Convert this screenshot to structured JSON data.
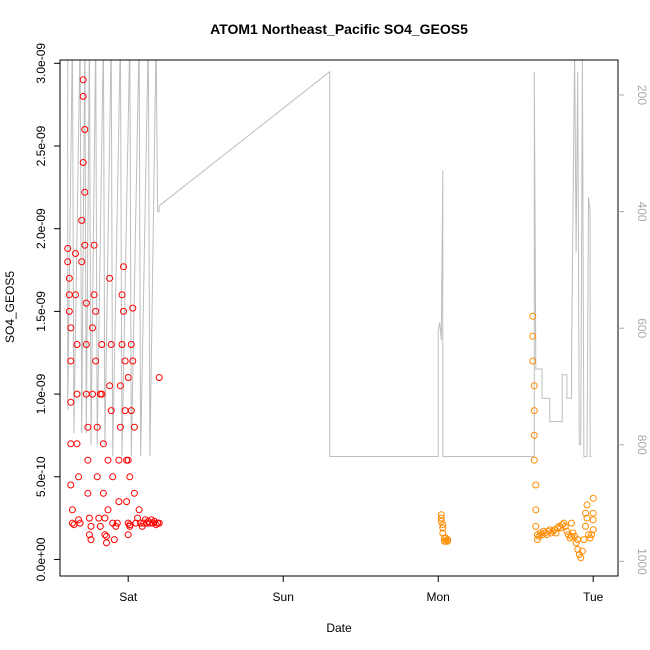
{
  "chart_data": {
    "type": "scatter",
    "title": "ATOM1 Northeast_Pacific SO4_GEOS5",
    "xlabel": "Date",
    "ylabel": "SO4_GEOS5",
    "x_ticks": [
      {
        "label": "Sat",
        "value": 1.0
      },
      {
        "label": "Sun",
        "value": 2.0
      },
      {
        "label": "Mon",
        "value": 3.0
      },
      {
        "label": "Tue",
        "value": 4.0
      }
    ],
    "y_ticks": [
      {
        "label": "0.0e+00",
        "value": 0
      },
      {
        "label": "5.0e-10",
        "value": 5e-10
      },
      {
        "label": "1.0e-09",
        "value": 1e-09
      },
      {
        "label": "1.5e-09",
        "value": 1.5e-09
      },
      {
        "label": "2.0e-09",
        "value": 2e-09
      },
      {
        "label": "2.5e-09",
        "value": 2.5e-09
      },
      {
        "label": "3.0e-09",
        "value": 3e-09
      }
    ],
    "y2_ticks": [
      {
        "label": "200",
        "value": 200
      },
      {
        "label": "400",
        "value": 400
      },
      {
        "label": "600",
        "value": 600
      },
      {
        "label": "800",
        "value": 800
      },
      {
        "label": "1000",
        "value": 1000
      }
    ],
    "xlim": [
      0.56,
      4.16
    ],
    "ylim": [
      -1e-10,
      3.02e-09
    ],
    "y2lim": [
      1025,
      140
    ],
    "colors": {
      "series1": "#ff0000",
      "series2": "#ff8c00",
      "secondary_line": "#bebebe",
      "axis": "#000000"
    },
    "series": [
      {
        "color": "#ff0000",
        "points": [
          [
            0.61,
            1.88e-09
          ],
          [
            0.61,
            1.8e-09
          ],
          [
            0.62,
            1.7e-09
          ],
          [
            0.62,
            1.6e-09
          ],
          [
            0.62,
            1.5e-09
          ],
          [
            0.63,
            1.4e-09
          ],
          [
            0.63,
            1.2e-09
          ],
          [
            0.63,
            9.5e-10
          ],
          [
            0.63,
            7e-10
          ],
          [
            0.63,
            4.5e-10
          ],
          [
            0.64,
            3e-10
          ],
          [
            0.64,
            2.2e-10
          ],
          [
            0.65,
            2.1e-10
          ],
          [
            0.66,
            1.85e-09
          ],
          [
            0.66,
            1.6e-09
          ],
          [
            0.67,
            1.3e-09
          ],
          [
            0.67,
            1e-09
          ],
          [
            0.67,
            7e-10
          ],
          [
            0.68,
            5e-10
          ],
          [
            0.68,
            2.4e-10
          ],
          [
            0.69,
            2.2e-10
          ],
          [
            0.7,
            1.8e-09
          ],
          [
            0.7,
            2.05e-09
          ],
          [
            0.71,
            2.4e-09
          ],
          [
            0.71,
            2.9e-09
          ],
          [
            0.71,
            2.8e-09
          ],
          [
            0.72,
            2.6e-09
          ],
          [
            0.72,
            2.22e-09
          ],
          [
            0.72,
            1.9e-09
          ],
          [
            0.73,
            1.55e-09
          ],
          [
            0.73,
            1.3e-09
          ],
          [
            0.73,
            1e-09
          ],
          [
            0.74,
            8e-10
          ],
          [
            0.74,
            6e-10
          ],
          [
            0.74,
            4e-10
          ],
          [
            0.75,
            2.5e-10
          ],
          [
            0.75,
            1.5e-10
          ],
          [
            0.76,
            1.2e-10
          ],
          [
            0.76,
            2e-10
          ],
          [
            0.77,
            1e-09
          ],
          [
            0.77,
            1.4e-09
          ],
          [
            0.78,
            1.6e-09
          ],
          [
            0.78,
            1.9e-09
          ],
          [
            0.79,
            1.5e-09
          ],
          [
            0.79,
            1.2e-09
          ],
          [
            0.8,
            8e-10
          ],
          [
            0.8,
            5e-10
          ],
          [
            0.81,
            2.5e-10
          ],
          [
            0.82,
            2e-10
          ],
          [
            0.82,
            1e-09
          ],
          [
            0.83,
            1.3e-09
          ],
          [
            0.83,
            1e-09
          ],
          [
            0.84,
            7e-10
          ],
          [
            0.84,
            4e-10
          ],
          [
            0.85,
            2.5e-10
          ],
          [
            0.85,
            1.5e-10
          ],
          [
            0.86,
            1e-10
          ],
          [
            0.86,
            1.4e-10
          ],
          [
            0.87,
            3e-10
          ],
          [
            0.87,
            6e-10
          ],
          [
            0.88,
            1.05e-09
          ],
          [
            0.88,
            1.7e-09
          ],
          [
            0.89,
            1.3e-09
          ],
          [
            0.89,
            9e-10
          ],
          [
            0.9,
            5e-10
          ],
          [
            0.9,
            2.2e-10
          ],
          [
            0.91,
            1.2e-10
          ],
          [
            0.92,
            2e-10
          ],
          [
            0.93,
            2.2e-10
          ],
          [
            0.94,
            3.5e-10
          ],
          [
            0.94,
            6e-10
          ],
          [
            0.95,
            8e-10
          ],
          [
            0.95,
            1.05e-09
          ],
          [
            0.96,
            1.3e-09
          ],
          [
            0.96,
            1.6e-09
          ],
          [
            0.97,
            1.77e-09
          ],
          [
            0.97,
            1.5e-09
          ],
          [
            0.98,
            1.2e-09
          ],
          [
            0.98,
            9e-10
          ],
          [
            0.99,
            6e-10
          ],
          [
            0.99,
            3.5e-10
          ],
          [
            1.0,
            2.2e-10
          ],
          [
            1.0,
            1.5e-10
          ],
          [
            1.01,
            2e-10
          ],
          [
            1.01,
            5e-10
          ],
          [
            1.02,
            9e-10
          ],
          [
            1.02,
            1.3e-09
          ],
          [
            1.03,
            1.52e-09
          ],
          [
            1.03,
            1.2e-09
          ],
          [
            1.04,
            8e-10
          ],
          [
            1.04,
            4e-10
          ],
          [
            1.05,
            2.2e-10
          ],
          [
            1.06,
            2.5e-10
          ],
          [
            1.07,
            3e-10
          ],
          [
            1.08,
            2.2e-10
          ],
          [
            1.09,
            2e-10
          ],
          [
            1.1,
            2.2e-10
          ],
          [
            1.11,
            2.4e-10
          ],
          [
            1.12,
            2.2e-10
          ],
          [
            1.13,
            2.3e-10
          ],
          [
            1.14,
            2.2e-10
          ],
          [
            1.15,
            2.4e-10
          ],
          [
            1.16,
            2.2e-10
          ],
          [
            1.17,
            2.3e-10
          ],
          [
            1.18,
            2.1e-10
          ],
          [
            1.19,
            2.2e-10
          ],
          [
            1.2,
            2.2e-10
          ],
          [
            1.2,
            1.1e-09
          ],
          [
            1.0,
            1.1e-09
          ],
          [
            1.0,
            6e-10
          ],
          [
            1.01,
            2.1e-10
          ]
        ]
      },
      {
        "color": "#ff8c00",
        "points": [
          [
            3.02,
            2.7e-10
          ],
          [
            3.02,
            2.5e-10
          ],
          [
            3.02,
            2.3e-10
          ],
          [
            3.03,
            2.1e-10
          ],
          [
            3.03,
            1.9e-10
          ],
          [
            3.03,
            1.6e-10
          ],
          [
            3.04,
            1.3e-10
          ],
          [
            3.04,
            1.1e-10
          ],
          [
            3.05,
            1.1e-10
          ],
          [
            3.05,
            1.3e-10
          ],
          [
            3.06,
            1.2e-10
          ],
          [
            3.06,
            1.1e-10
          ],
          [
            3.61,
            1.47e-09
          ],
          [
            3.61,
            1.35e-09
          ],
          [
            3.61,
            1.2e-09
          ],
          [
            3.62,
            1.05e-09
          ],
          [
            3.62,
            9e-10
          ],
          [
            3.62,
            7.5e-10
          ],
          [
            3.62,
            6e-10
          ],
          [
            3.63,
            4.5e-10
          ],
          [
            3.63,
            3e-10
          ],
          [
            3.63,
            2e-10
          ],
          [
            3.64,
            1.5e-10
          ],
          [
            3.64,
            1.2e-10
          ],
          [
            3.65,
            1.4e-10
          ],
          [
            3.66,
            1.6e-10
          ],
          [
            3.67,
            1.5e-10
          ],
          [
            3.68,
            1.7e-10
          ],
          [
            3.69,
            1.6e-10
          ],
          [
            3.7,
            1.5e-10
          ],
          [
            3.71,
            1.7e-10
          ],
          [
            3.72,
            1.8e-10
          ],
          [
            3.73,
            1.6e-10
          ],
          [
            3.74,
            1.7e-10
          ],
          [
            3.75,
            1.8e-10
          ],
          [
            3.76,
            1.6e-10
          ],
          [
            3.77,
            1.9e-10
          ],
          [
            3.78,
            2e-10
          ],
          [
            3.79,
            1.9e-10
          ],
          [
            3.8,
            2.1e-10
          ],
          [
            3.81,
            2.2e-10
          ],
          [
            3.82,
            2e-10
          ],
          [
            3.83,
            1.7e-10
          ],
          [
            3.84,
            1.5e-10
          ],
          [
            3.85,
            1.3e-10
          ],
          [
            3.86,
            1.4e-10
          ],
          [
            3.87,
            1.6e-10
          ],
          [
            3.88,
            1.4e-10
          ],
          [
            3.89,
            1e-10
          ],
          [
            3.9,
            6e-11
          ],
          [
            3.91,
            3e-11
          ],
          [
            3.92,
            1e-11
          ],
          [
            3.93,
            5e-11
          ],
          [
            3.94,
            1.2e-10
          ],
          [
            3.95,
            2e-10
          ],
          [
            3.95,
            2.8e-10
          ],
          [
            3.96,
            3.3e-10
          ],
          [
            3.96,
            2.5e-10
          ],
          [
            3.97,
            1.5e-10
          ],
          [
            3.98,
            1.3e-10
          ],
          [
            3.99,
            1.5e-10
          ],
          [
            4.0,
            2.4e-10
          ],
          [
            4.0,
            3.7e-10
          ],
          [
            4.0,
            2.8e-10
          ],
          [
            4.0,
            1.8e-10
          ],
          [
            3.9,
            1.2e-10
          ],
          [
            3.86,
            2.2e-10
          ]
        ]
      }
    ],
    "secondary_line": [
      [
        0.61,
        100
      ],
      [
        0.61,
        740
      ],
      [
        0.64,
        100
      ],
      [
        0.65,
        780
      ],
      [
        0.69,
        100
      ],
      [
        0.7,
        780
      ],
      [
        0.72,
        100
      ],
      [
        0.73,
        780
      ],
      [
        0.75,
        100
      ],
      [
        0.76,
        800
      ],
      [
        0.79,
        100
      ],
      [
        0.8,
        800
      ],
      [
        0.84,
        100
      ],
      [
        0.85,
        800
      ],
      [
        0.89,
        100
      ],
      [
        0.9,
        820
      ],
      [
        0.95,
        100
      ],
      [
        0.96,
        820
      ],
      [
        1.01,
        100
      ],
      [
        1.02,
        820
      ],
      [
        1.07,
        100
      ],
      [
        1.08,
        820
      ],
      [
        1.13,
        100
      ],
      [
        1.14,
        820
      ],
      [
        1.18,
        100
      ],
      [
        1.19,
        400
      ],
      [
        1.2,
        400
      ],
      [
        1.2,
        390
      ],
      [
        2.3,
        160
      ],
      [
        2.3,
        820
      ],
      [
        3.0,
        820
      ],
      [
        3.0,
        605
      ],
      [
        3.01,
        590
      ],
      [
        3.02,
        620
      ],
      [
        3.03,
        330
      ],
      [
        3.03,
        820
      ],
      [
        3.62,
        820
      ],
      [
        3.62,
        160
      ],
      [
        3.63,
        670
      ],
      [
        3.67,
        670
      ],
      [
        3.67,
        720
      ],
      [
        3.72,
        720
      ],
      [
        3.72,
        760
      ],
      [
        3.8,
        760
      ],
      [
        3.8,
        680
      ],
      [
        3.83,
        680
      ],
      [
        3.83,
        720
      ],
      [
        3.86,
        720
      ],
      [
        3.86,
        660
      ],
      [
        3.88,
        120
      ],
      [
        3.89,
        470
      ],
      [
        3.9,
        160
      ],
      [
        3.91,
        800
      ],
      [
        3.92,
        800
      ],
      [
        3.93,
        140
      ],
      [
        3.94,
        820
      ],
      [
        3.96,
        820
      ],
      [
        3.97,
        375
      ],
      [
        3.98,
        400
      ],
      [
        3.98,
        820
      ],
      [
        3.99,
        820
      ]
    ]
  }
}
